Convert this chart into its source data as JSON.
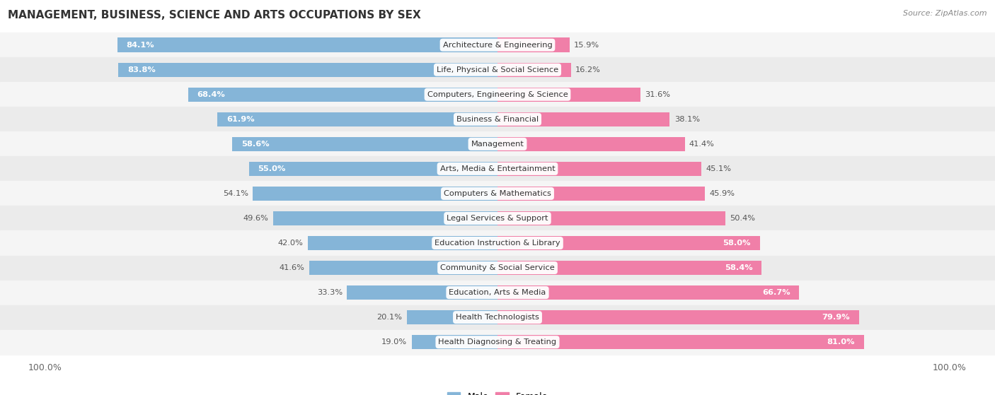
{
  "title": "MANAGEMENT, BUSINESS, SCIENCE AND ARTS OCCUPATIONS BY SEX",
  "source": "Source: ZipAtlas.com",
  "categories": [
    "Architecture & Engineering",
    "Life, Physical & Social Science",
    "Computers, Engineering & Science",
    "Business & Financial",
    "Management",
    "Arts, Media & Entertainment",
    "Computers & Mathematics",
    "Legal Services & Support",
    "Education Instruction & Library",
    "Community & Social Service",
    "Education, Arts & Media",
    "Health Technologists",
    "Health Diagnosing & Treating"
  ],
  "male": [
    84.1,
    83.8,
    68.4,
    61.9,
    58.6,
    55.0,
    54.1,
    49.6,
    42.0,
    41.6,
    33.3,
    20.1,
    19.0
  ],
  "female": [
    15.9,
    16.2,
    31.6,
    38.1,
    41.4,
    45.1,
    45.9,
    50.4,
    58.0,
    58.4,
    66.7,
    79.9,
    81.0
  ],
  "male_color": "#85b5d8",
  "female_color": "#f07fa8",
  "bar_height": 0.58,
  "label_fontsize": 8.2,
  "title_fontsize": 11,
  "legend_fontsize": 9,
  "row_colors": [
    "#f5f5f5",
    "#ebebeb"
  ]
}
